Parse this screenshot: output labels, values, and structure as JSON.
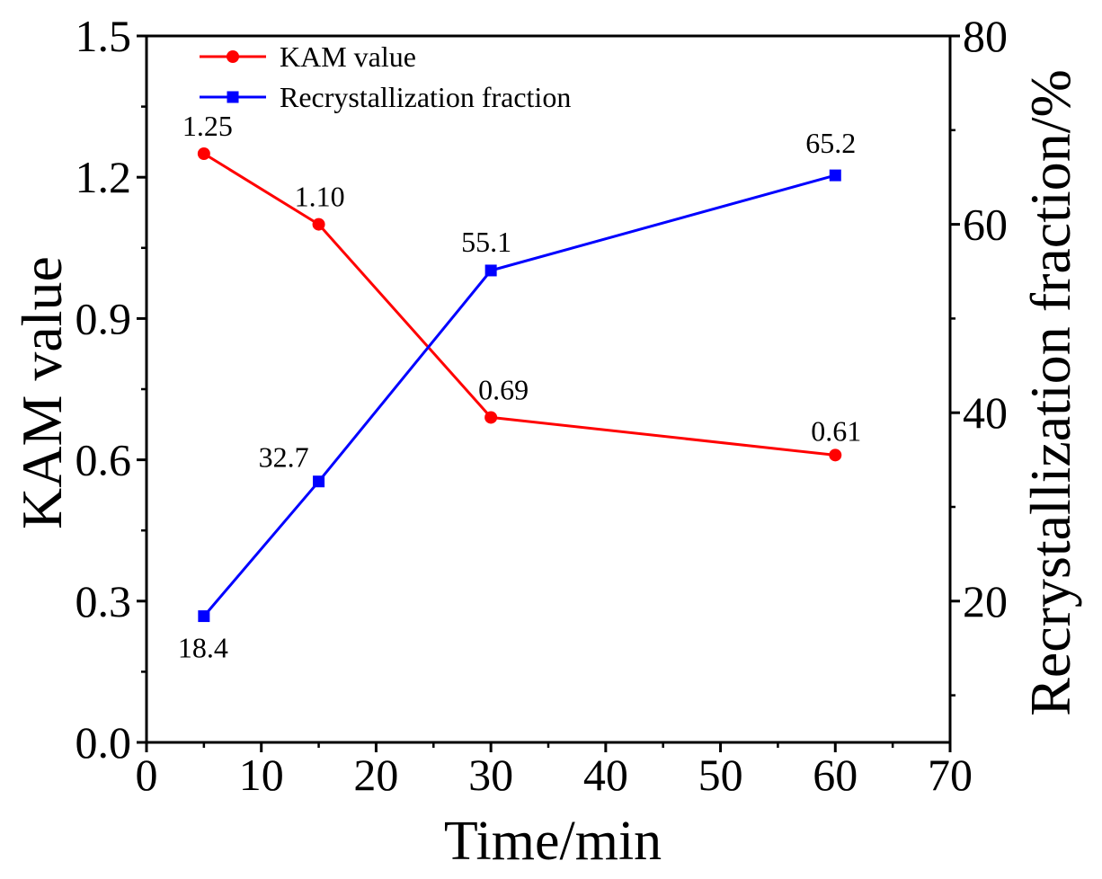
{
  "chart_data": {
    "type": "line",
    "xlabel": "Time/min",
    "ylabel": "KAM value",
    "ylabel_right": "Recrystallization fraction/%",
    "grid": false,
    "legend_position": "top-left",
    "x": [
      5,
      15,
      30,
      60
    ],
    "xlim": [
      0,
      70
    ],
    "xticks": [
      0,
      10,
      20,
      30,
      40,
      50,
      60,
      70
    ],
    "xtick_labels": [
      "0",
      "10",
      "20",
      "30",
      "40",
      "50",
      "60",
      "70"
    ],
    "ylim": [
      0,
      1.5
    ],
    "yticks": [
      0,
      0.3,
      0.6,
      0.9,
      1.2,
      1.5
    ],
    "ytick_labels": [
      "0.0",
      "0.3",
      "0.6",
      "0.9",
      "1.2",
      "1.5"
    ],
    "ylim_right": [
      5,
      80
    ],
    "yticks_right": [
      20,
      40,
      60,
      80
    ],
    "ytick_labels_right": [
      "20",
      "40",
      "60",
      "80"
    ],
    "series": [
      {
        "name": "KAM value",
        "secondary_axis": false,
        "color": "#ff0000",
        "marker": "circle",
        "values": [
          1.25,
          1.1,
          0.69,
          0.61
        ],
        "labels": [
          "1.25",
          "1.10",
          "0.69",
          "0.61"
        ]
      },
      {
        "name": "Recrystallization fraction",
        "secondary_axis": true,
        "color": "#0000ff",
        "marker": "square",
        "values": [
          18.4,
          32.7,
          55.1,
          65.2
        ],
        "labels": [
          "18.4",
          "32.7",
          "55.1",
          "65.2"
        ]
      }
    ]
  }
}
